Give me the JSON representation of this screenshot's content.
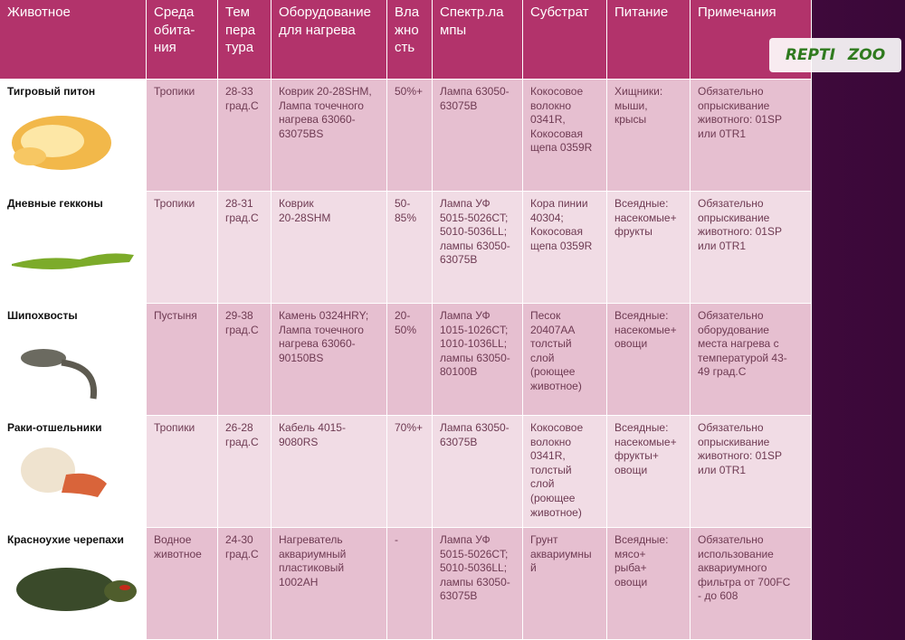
{
  "logo": {
    "left": "REPTI",
    "right": "ZOO"
  },
  "table": {
    "header": [
      "Животное",
      "Среда\nобита-\nния",
      "Тем\nпера\nтура",
      "Оборудование\nдля нагрева",
      "Вла\nжно\nсть",
      "Спектр.ла\nмпы",
      "Субстрат",
      "Питание",
      "Примечания"
    ],
    "rows": [
      [
        "Тигровый питон",
        "Тропики",
        "28-33\nград.С",
        "Коврик 20-28SHM,\nЛампа точечного\nнагрева 63060-\n63075BS",
        "50%+",
        "Лампа 63050-\n63075B",
        "Кокосовое\nволокно\n0341R,\nКокосовая\nщепа 0359R",
        "Хищники:\nмыши,\nкрысы",
        "Обязательно\nопрыскивание\nживотного: 01SP\nили 0TR1"
      ],
      [
        "Дневные гекконы",
        "Тропики",
        "28-31\nград.С",
        "Коврик\n20-28SHM",
        "50-\n85%",
        "Лампа УФ\n5015-5026CT;\n5010-5036LL;\nлампы 63050-\n63075B",
        "Кора пинии\n40304;\nКокосовая\nщепа 0359R",
        "Всеядные:\nнасекомые+\nфрукты",
        "Обязательно\nопрыскивание\nживотного: 01SP\nили 0TR1"
      ],
      [
        "Шипохвосты",
        "Пустыня",
        "29-38\nград.С",
        "Камень 0324HRY;\nЛампа точечного\nнагрева 63060-\n90150BS",
        "20-\n50%",
        "Лампа УФ\n1015-1026CT;\n1010-1036LL;\nлампы 63050-\n80100B",
        "Песок\n20407AA\nтолстый\nслой\n(роющее\nживотное)",
        "Всеядные:\nнасекомые+\nовощи",
        "Обязательно\nоборудование\nместа нагрева с\nтемпературой 43-\n49 град.С"
      ],
      [
        "Раки-отшельники",
        "Тропики",
        "26-28\nград.С",
        "Кабель 4015-\n9080RS",
        "70%+",
        "Лампа 63050-\n63075B",
        "Кокосовое\nволокно\n0341R,\nтолстый\nслой\n(роющее\nживотное)",
        "Всеядные:\nнасекомые+\nфрукты+\nовощи",
        "Обязательно\nопрыскивание\nживотного: 01SP\nили 0TR1"
      ],
      [
        "Красноухие черепахи",
        "Водное\nживотное",
        "24-30\nград.С",
        "Нагреватель\nаквариумный\nпластиковый\n1002AH",
        "-",
        "Лампа УФ\n5015-5026CT;\n5010-5036LL;\nлампы 63050-\n63075B",
        "Грунт\nаквариумны\nй",
        "Всеядные:\nмясо+\nрыба+\nовощи",
        "Обязательно\nиспользование\naквариумного\nфильтра от 700FC\n- до 608"
      ]
    ]
  }
}
